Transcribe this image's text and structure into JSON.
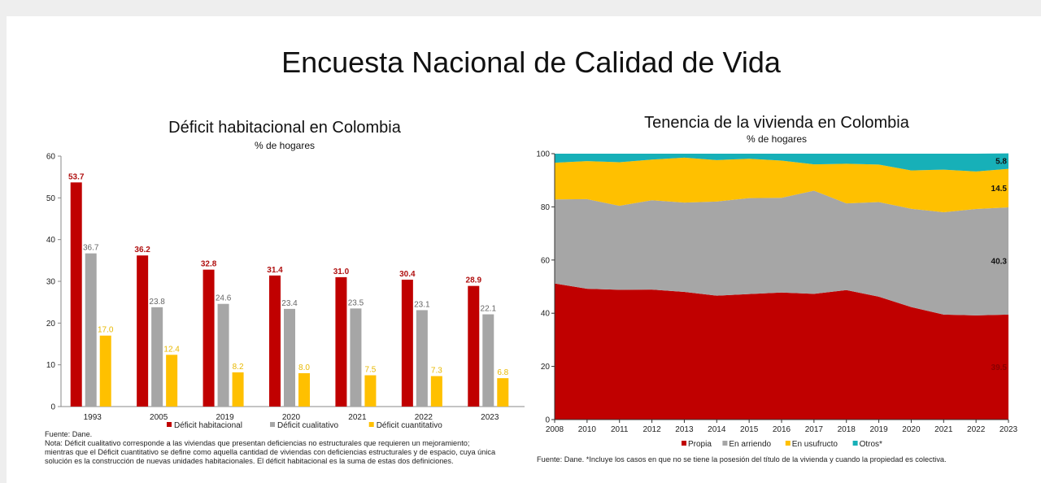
{
  "slide": {
    "title": "Encuesta Nacional de Calidad de Vida"
  },
  "left_chart": {
    "title": "Déficit habitacional en Colombia",
    "subtitle": "% de hogares",
    "notes": [
      "Fuente: Dane.",
      "Nota: Déficit cualitativo corresponde a las viviendas que presentan deficiencias no estructurales que requieren un mejoramiento;",
      "mientras que el Déficit cuantitativo se define como aquella cantidad de viviendas con deficiencias estructurales y de espacio, cuya única",
      "solución es la construcción de nuevas unidades habitacionales. El déficit habitacional es la suma de estas dos definiciones."
    ]
  },
  "right_chart": {
    "title": "Tenencia de la vivienda en Colombia",
    "subtitle": "% de hogares",
    "notes": [
      "Fuente: Dane. *Incluye los casos en que no se tiene la posesión del título de la vivienda y cuando la propiedad es colectiva."
    ]
  },
  "chart_data": [
    {
      "type": "bar",
      "title": "Déficit habitacional en Colombia",
      "subtitle": "% de hogares",
      "categories": [
        "1993",
        "2005",
        "2019",
        "2020",
        "2021",
        "2022",
        "2023"
      ],
      "ylim": [
        0,
        60
      ],
      "yticks": [
        0,
        10,
        20,
        30,
        40,
        50,
        60
      ],
      "legend": "bottom",
      "series": [
        {
          "name": "Déficit habitacional",
          "color": "#c00000",
          "values": [
            53.7,
            36.2,
            32.8,
            31.4,
            31.0,
            30.4,
            28.9
          ],
          "labels": [
            "53.7",
            "36.2",
            "32.8",
            "31.4",
            "31.0",
            "30.4",
            "28.9"
          ]
        },
        {
          "name": "Déficit cualitativo",
          "color": "#a6a6a6",
          "values": [
            36.7,
            23.8,
            24.6,
            23.4,
            23.5,
            23.1,
            22.1
          ],
          "labels": [
            "36.7",
            "23.8",
            "24.6",
            "23.4",
            "23.5",
            "23.1",
            "22.1"
          ]
        },
        {
          "name": "Déficit cuantitativo",
          "color": "#ffc000",
          "values": [
            17.0,
            12.4,
            8.2,
            8.0,
            7.5,
            7.3,
            6.8
          ],
          "labels": [
            "17.0",
            "12.4",
            "8.2",
            "8.0",
            "7.5",
            "7.3",
            "6.8"
          ]
        }
      ]
    },
    {
      "type": "area",
      "stacked": true,
      "title": "Tenencia de la vivienda en Colombia",
      "subtitle": "% de hogares",
      "x": [
        "2008",
        "2010",
        "2011",
        "2012",
        "2013",
        "2014",
        "2015",
        "2016",
        "2017",
        "2018",
        "2019",
        "2020",
        "2021",
        "2022",
        "2023"
      ],
      "ylim": [
        0,
        100
      ],
      "yticks": [
        0,
        20,
        40,
        60,
        80,
        100
      ],
      "legend": "bottom",
      "series": [
        {
          "name": "Propia",
          "color": "#c00000",
          "values": [
            51.2,
            49.2,
            48.8,
            48.9,
            48.0,
            46.6,
            47.2,
            47.8,
            47.3,
            48.7,
            46.2,
            42.3,
            39.5,
            39.2,
            39.5
          ],
          "last_label": "39.5"
        },
        {
          "name": "En arriendo",
          "color": "#a6a6a6",
          "values": [
            31.6,
            33.7,
            31.6,
            33.6,
            33.6,
            35.4,
            36.1,
            35.6,
            38.8,
            32.6,
            35.6,
            37.0,
            38.5,
            40.0,
            40.3
          ],
          "last_label": "40.3"
        },
        {
          "name": "En usufructo",
          "color": "#ffc000",
          "values": [
            13.8,
            14.3,
            16.4,
            15.3,
            16.9,
            15.6,
            14.8,
            14.0,
            9.9,
            14.9,
            14.1,
            14.4,
            16.0,
            14.1,
            14.5
          ],
          "last_label": "14.5"
        },
        {
          "name": "Otros*",
          "color": "#17b0b8",
          "values": [
            3.4,
            2.8,
            3.2,
            2.2,
            1.5,
            2.4,
            1.9,
            2.6,
            4.0,
            3.8,
            4.1,
            6.3,
            6.0,
            6.7,
            5.8
          ],
          "last_label": "5.8"
        }
      ]
    }
  ]
}
